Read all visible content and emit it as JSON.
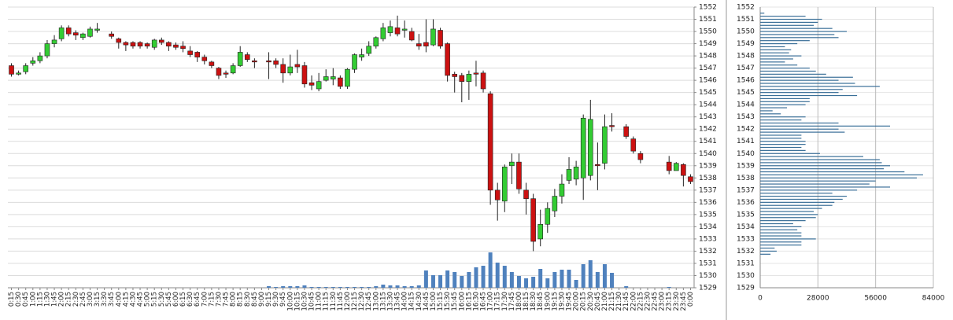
{
  "chart_data": [
    {
      "type": "candlestick",
      "categories": [
        "0:15",
        "0:30",
        "0:45",
        "1:00",
        "1:15",
        "1:30",
        "1:45",
        "2:00",
        "2:15",
        "2:30",
        "2:45",
        "3:00",
        "3:15",
        "3:30",
        "3:45",
        "4:00",
        "4:15",
        "4:30",
        "4:45",
        "5:00",
        "5:15",
        "5:30",
        "5:45",
        "6:00",
        "6:15",
        "6:30",
        "6:45",
        "7:00",
        "7:15",
        "7:30",
        "7:45",
        "8:00",
        "8:15",
        "8:30",
        "8:45",
        "9:00",
        "9:15",
        "9:30",
        "9:45",
        "10:00",
        "10:15",
        "10:30",
        "10:45",
        "11:00",
        "11:15",
        "11:30",
        "11:45",
        "12:00",
        "12:15",
        "12:30",
        "12:45",
        "13:00",
        "13:15",
        "13:30",
        "13:45",
        "14:00",
        "14:15",
        "14:30",
        "14:45",
        "15:00",
        "15:15",
        "15:30",
        "15:45",
        "16:00",
        "16:15",
        "16:30",
        "16:45",
        "17:00",
        "17:15",
        "17:30",
        "17:45",
        "18:00",
        "18:15",
        "18:30",
        "18:45",
        "19:00",
        "19:15",
        "19:30",
        "19:45",
        "20:00",
        "20:15",
        "20:30",
        "20:45",
        "21:00",
        "21:15",
        "21:30",
        "21:45",
        "22:00",
        "22:15",
        "22:30",
        "22:45",
        "23:00",
        "23:15",
        "23:30",
        "23:45",
        "0:00"
      ],
      "open": [
        1547.2,
        1546.5,
        1546.7,
        1547.4,
        1547.6,
        1548.0,
        1549.0,
        1549.4,
        1550.3,
        1549.9,
        1549.5,
        1549.6,
        1550.1,
        null,
        1549.8,
        1549.4,
        1549.1,
        1549.1,
        1549.1,
        1549.0,
        1548.7,
        1549.3,
        1549.1,
        1548.9,
        1548.8,
        1548.4,
        1548.3,
        1547.9,
        1547.5,
        1547.0,
        1546.6,
        1546.6,
        1547.2,
        1548.1,
        1547.6,
        null,
        1547.6,
        1547.6,
        1547.3,
        1546.6,
        1547.3,
        1547.2,
        1545.8,
        1545.3,
        1546.0,
        1546.1,
        1546.2,
        1545.5,
        1546.9,
        1547.9,
        1548.2,
        1548.8,
        1549.4,
        1549.9,
        1550.3,
        1550.1,
        1550.0,
        1549.0,
        1549.1,
        1548.9,
        1550.1,
        1549.0,
        1546.5,
        1546.4,
        1545.9,
        1546.6,
        1546.6,
        1544.9,
        1537.0,
        1536.1,
        1539.0,
        1539.3,
        1537.0,
        1536.3,
        1533.0,
        1534.2,
        1535.3,
        1536.5,
        1537.8,
        1537.9,
        1538.0,
        1538.2,
        1539.1,
        1539.2,
        1542.3,
        null,
        1542.2,
        1541.2,
        1540.0,
        null,
        null,
        null,
        1539.3,
        1538.6,
        1539.1,
        1538.1
      ],
      "high": [
        1547.4,
        1546.8,
        1547.4,
        1547.9,
        1548.3,
        1549.3,
        1549.7,
        1550.5,
        1550.5,
        1550.1,
        1549.9,
        1550.4,
        1550.7,
        null,
        1550.0,
        1549.5,
        1549.2,
        1549.2,
        1549.2,
        1549.1,
        1549.4,
        1549.5,
        1549.2,
        1549.1,
        1549.2,
        1548.8,
        1548.4,
        1548.1,
        1547.6,
        1547.1,
        1546.8,
        1547.4,
        1548.8,
        1548.3,
        1547.8,
        null,
        1548.3,
        1547.8,
        1547.8,
        1548.1,
        1548.5,
        1547.5,
        1546.4,
        1546.6,
        1546.9,
        1547.0,
        1546.4,
        1547.0,
        1548.2,
        1548.6,
        1549.2,
        1549.6,
        1550.7,
        1550.9,
        1551.3,
        1550.9,
        1550.3,
        1549.8,
        1551.0,
        1551.0,
        1550.3,
        1549.1,
        1546.7,
        1546.6,
        1546.8,
        1547.6,
        1546.8,
        1545.1,
        1537.6,
        1539.1,
        1540.0,
        1540.0,
        1537.6,
        1536.7,
        1535.4,
        1536.0,
        1537.1,
        1538.3,
        1539.7,
        1539.4,
        1543.2,
        1544.4,
        1540.9,
        1543.2,
        1543.3,
        null,
        1542.4,
        1541.4,
        1540.2,
        null,
        null,
        null,
        1539.8,
        1539.3,
        1539.2,
        1538.3
      ],
      "low": [
        1546.3,
        1546.4,
        1546.5,
        1547.2,
        1547.4,
        1547.8,
        1548.7,
        1549.2,
        1549.6,
        1549.3,
        1549.3,
        1549.5,
        1549.9,
        null,
        1549.4,
        1548.6,
        1548.4,
        1548.6,
        1548.6,
        1548.6,
        1548.5,
        1548.9,
        1548.4,
        1548.5,
        1548.3,
        1547.9,
        1547.5,
        1547.3,
        1547.0,
        1546.1,
        1546.2,
        1546.5,
        1547.1,
        1547.5,
        1547.0,
        null,
        1546.1,
        1547.0,
        1545.8,
        1546.4,
        1546.6,
        1545.4,
        1545.2,
        1545.1,
        1545.9,
        1545.6,
        1545.3,
        1545.3,
        1546.6,
        1547.6,
        1548.0,
        1548.6,
        1549.2,
        1549.6,
        1549.6,
        1549.5,
        1549.2,
        1548.5,
        1548.3,
        1548.8,
        1548.6,
        1545.9,
        1545.0,
        1544.2,
        1544.4,
        1545.5,
        1545.0,
        1535.8,
        1534.5,
        1535.2,
        1537.5,
        1536.7,
        1535.0,
        1532.0,
        1532.4,
        1533.5,
        1534.8,
        1535.9,
        1537.5,
        1537.4,
        1536.2,
        1537.8,
        1537.0,
        1538.7,
        1541.8,
        null,
        1541.2,
        1540.0,
        1539.2,
        null,
        null,
        null,
        1538.3,
        1538.6,
        1537.3,
        1537.5
      ],
      "close": [
        1546.5,
        1546.6,
        1547.2,
        1547.6,
        1548.0,
        1549.0,
        1549.3,
        1550.3,
        1549.8,
        1549.7,
        1549.8,
        1550.2,
        1550.2,
        null,
        1549.6,
        1549.1,
        1548.9,
        1548.8,
        1548.8,
        1548.8,
        1549.3,
        1549.1,
        1548.8,
        1548.7,
        1548.6,
        1548.1,
        1547.9,
        1547.6,
        1547.2,
        1546.4,
        1546.5,
        1547.2,
        1548.3,
        1547.7,
        1547.5,
        null,
        1547.5,
        1547.3,
        1546.6,
        1547.1,
        1547.1,
        1545.7,
        1545.6,
        1545.9,
        1546.3,
        1546.3,
        1545.5,
        1546.9,
        1548.1,
        1548.1,
        1548.8,
        1549.5,
        1550.3,
        1550.4,
        1549.8,
        1550.2,
        1549.3,
        1548.8,
        1548.8,
        1550.2,
        1548.8,
        1546.4,
        1546.3,
        1545.9,
        1546.5,
        1546.5,
        1545.3,
        1537.0,
        1536.2,
        1538.9,
        1539.3,
        1537.1,
        1536.3,
        1532.8,
        1534.2,
        1535.5,
        1536.5,
        1537.5,
        1538.7,
        1538.9,
        1542.9,
        1542.8,
        1539.0,
        1542.2,
        1542.2,
        null,
        1541.4,
        1540.2,
        1539.5,
        null,
        null,
        null,
        1538.6,
        1539.2,
        1538.2,
        1537.7
      ],
      "volume": [
        0,
        0,
        0,
        0,
        0,
        0,
        0,
        0,
        0,
        0,
        0,
        0,
        0,
        0,
        0,
        0,
        0,
        0,
        0,
        0,
        0,
        0,
        0,
        0,
        0,
        0,
        0,
        0,
        0,
        0,
        0,
        0,
        0,
        0,
        0,
        0,
        280,
        140,
        280,
        280,
        280,
        420,
        140,
        140,
        140,
        140,
        140,
        140,
        140,
        140,
        140,
        280,
        560,
        420,
        420,
        280,
        280,
        420,
        3080,
        2240,
        2240,
        3080,
        2800,
        2100,
        2800,
        3640,
        3920,
        6300,
        4480,
        3920,
        2800,
        2100,
        1680,
        1960,
        3360,
        1680,
        2800,
        3220,
        3220,
        1400,
        4200,
        4900,
        2800,
        4200,
        2660,
        0,
        280,
        0,
        0,
        0,
        0,
        0,
        140,
        0,
        0,
        0
      ],
      "volume_lim": [
        0,
        50000
      ],
      "up_color": "#33cc33",
      "down_color": "#cc1111",
      "volume_color": "#4f81bd",
      "ylim": [
        1529,
        1552
      ],
      "yticks": [
        1529,
        1530,
        1531,
        1532,
        1533,
        1534,
        1535,
        1536,
        1537,
        1538,
        1539,
        1540,
        1541,
        1542,
        1543,
        1544,
        1545,
        1546,
        1547,
        1548,
        1549,
        1550,
        1551,
        1552
      ],
      "grid": true
    },
    {
      "type": "hbar",
      "levels": [
        1551.5,
        1551.25,
        1551.0,
        1550.75,
        1550.5,
        1550.25,
        1550.0,
        1549.75,
        1549.5,
        1549.25,
        1549.0,
        1548.75,
        1548.5,
        1548.25,
        1548.0,
        1547.75,
        1547.5,
        1547.25,
        1547.0,
        1546.75,
        1546.5,
        1546.25,
        1546.0,
        1545.75,
        1545.5,
        1545.25,
        1545.0,
        1544.75,
        1544.5,
        1544.25,
        1544.0,
        1543.75,
        1543.5,
        1543.25,
        1543.0,
        1542.75,
        1542.5,
        1542.25,
        1542.0,
        1541.75,
        1541.5,
        1541.25,
        1541.0,
        1540.75,
        1540.5,
        1540.25,
        1540.0,
        1539.75,
        1539.5,
        1539.25,
        1539.0,
        1538.75,
        1538.5,
        1538.25,
        1538.0,
        1537.75,
        1537.5,
        1537.25,
        1537.0,
        1536.75,
        1536.5,
        1536.25,
        1536.0,
        1535.75,
        1535.5,
        1535.25,
        1535.0,
        1534.75,
        1534.5,
        1534.25,
        1534.0,
        1533.75,
        1533.5,
        1533.25,
        1533.0,
        1532.75,
        1532.5,
        1532.25,
        1532.0,
        1531.75
      ],
      "values": [
        2000,
        22000,
        30000,
        28000,
        26000,
        35000,
        42000,
        36000,
        38000,
        24000,
        18000,
        12000,
        15000,
        14000,
        20000,
        16000,
        12000,
        18000,
        24000,
        27000,
        32000,
        45000,
        38000,
        46000,
        58000,
        40000,
        38000,
        47000,
        24000,
        24000,
        22000,
        13000,
        6000,
        10000,
        22000,
        20000,
        38000,
        63000,
        38000,
        41000,
        20000,
        20000,
        22000,
        22000,
        20000,
        22000,
        29000,
        50000,
        58000,
        59000,
        63000,
        60000,
        70000,
        79000,
        76000,
        56000,
        53000,
        63000,
        47000,
        35000,
        42000,
        40000,
        36000,
        35000,
        30000,
        26000,
        28000,
        27000,
        22000,
        16000,
        20000,
        18000,
        20000,
        20000,
        27000,
        20000,
        20000,
        7000,
        8000,
        5000
      ],
      "color": "#3a6f98",
      "xlim": [
        0,
        84000
      ],
      "xticks": [
        0,
        28000,
        56000,
        84000
      ],
      "ylim": [
        1529,
        1552
      ],
      "yticks": [
        1529,
        1530,
        1531,
        1532,
        1533,
        1534,
        1535,
        1536,
        1537,
        1538,
        1539,
        1540,
        1541,
        1542,
        1543,
        1544,
        1545,
        1546,
        1547,
        1548,
        1549,
        1550,
        1551,
        1552
      ],
      "grid": true
    }
  ]
}
